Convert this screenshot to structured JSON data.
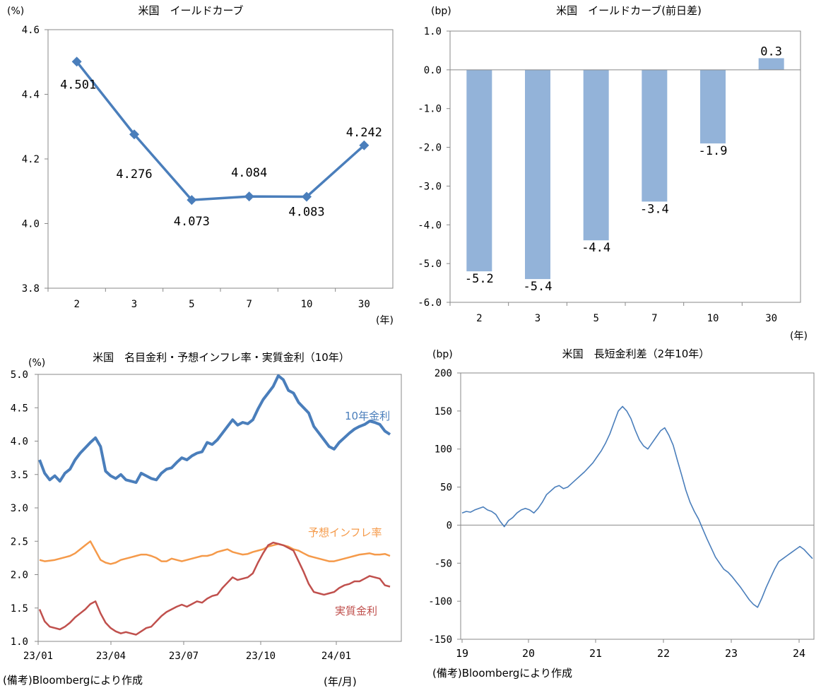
{
  "chart_data": [
    {
      "type": "line",
      "title": "米国　イールドカーブ",
      "ylabel": "(%)",
      "xlabel": "(年)",
      "categories": [
        "2",
        "3",
        "5",
        "7",
        "10",
        "30"
      ],
      "series": [
        {
          "values": [
            4.501,
            4.276,
            4.073,
            4.084,
            4.083,
            4.242
          ]
        }
      ],
      "data_labels": [
        "4.501",
        "4.276",
        "4.073",
        "4.084",
        "4.083",
        "4.242"
      ],
      "y_ticks": [
        "4.6",
        "4.4",
        "4.2",
        "4.0",
        "3.8"
      ],
      "ylim": [
        3.8,
        4.6
      ],
      "grid": false,
      "color": "#4a7ebb"
    },
    {
      "type": "bar",
      "title": "米国　イールドカーブ(前日差)",
      "ylabel": "(bp)",
      "xlabel": "(年)",
      "categories": [
        "2",
        "3",
        "5",
        "7",
        "10",
        "30"
      ],
      "values": [
        -5.2,
        -5.4,
        -4.4,
        -3.4,
        -1.9,
        0.3
      ],
      "data_labels": [
        "-5.2",
        "-5.4",
        "-4.4",
        "-3.4",
        "-1.9",
        "0.3"
      ],
      "y_ticks": [
        "1.0",
        "0.0",
        "-1.0",
        "-2.0",
        "-3.0",
        "-4.0",
        "-5.0",
        "-6.0"
      ],
      "ylim": [
        -6,
        1
      ],
      "grid": false,
      "color": "#93b3d9"
    },
    {
      "type": "line",
      "title": "米国　名目金利・予想インフレ率・実質金利（10年）",
      "ylabel": "(%)",
      "xlabel": "(年/月)",
      "x_ticks": [
        "23/01",
        "23/04",
        "23/07",
        "23/10",
        "24/01"
      ],
      "y_ticks": [
        "5.0",
        "4.5",
        "4.0",
        "3.5",
        "3.0",
        "2.5",
        "2.0",
        "1.5",
        "1.0"
      ],
      "ylim": [
        1.0,
        5.0
      ],
      "grid": false,
      "series": [
        {
          "name": "10年金利",
          "color": "#4a7ebb",
          "values": [
            3.72,
            3.52,
            3.42,
            3.48,
            3.4,
            3.52,
            3.58,
            3.72,
            3.82,
            3.9,
            3.98,
            4.05,
            3.92,
            3.55,
            3.48,
            3.44,
            3.5,
            3.42,
            3.4,
            3.38,
            3.52,
            3.48,
            3.44,
            3.42,
            3.52,
            3.58,
            3.6,
            3.68,
            3.75,
            3.72,
            3.78,
            3.82,
            3.84,
            3.98,
            3.95,
            4.02,
            4.12,
            4.22,
            4.32,
            4.24,
            4.28,
            4.26,
            4.32,
            4.48,
            4.62,
            4.72,
            4.82,
            4.98,
            4.92,
            4.76,
            4.72,
            4.58,
            4.5,
            4.42,
            4.22,
            4.12,
            4.02,
            3.92,
            3.88,
            3.98,
            4.05,
            4.12,
            4.18,
            4.22,
            4.25,
            4.3,
            4.28,
            4.25,
            4.15,
            4.1
          ]
        },
        {
          "name": "予想インフレ率",
          "color": "#f59a4a",
          "values": [
            2.22,
            2.2,
            2.21,
            2.22,
            2.24,
            2.26,
            2.28,
            2.32,
            2.38,
            2.44,
            2.5,
            2.36,
            2.22,
            2.18,
            2.16,
            2.18,
            2.22,
            2.24,
            2.26,
            2.28,
            2.3,
            2.3,
            2.28,
            2.25,
            2.2,
            2.2,
            2.24,
            2.22,
            2.2,
            2.22,
            2.24,
            2.26,
            2.28,
            2.28,
            2.3,
            2.34,
            2.36,
            2.38,
            2.34,
            2.32,
            2.3,
            2.31,
            2.34,
            2.36,
            2.38,
            2.42,
            2.44,
            2.46,
            2.44,
            2.42,
            2.38,
            2.36,
            2.32,
            2.28,
            2.26,
            2.24,
            2.22,
            2.2,
            2.2,
            2.22,
            2.24,
            2.26,
            2.28,
            2.3,
            2.31,
            2.32,
            2.3,
            2.3,
            2.31,
            2.28
          ]
        },
        {
          "name": "実質金利",
          "color": "#c0504d",
          "values": [
            1.48,
            1.3,
            1.22,
            1.2,
            1.18,
            1.22,
            1.28,
            1.36,
            1.42,
            1.48,
            1.56,
            1.6,
            1.42,
            1.28,
            1.2,
            1.15,
            1.12,
            1.14,
            1.12,
            1.1,
            1.15,
            1.2,
            1.22,
            1.3,
            1.38,
            1.44,
            1.48,
            1.52,
            1.55,
            1.52,
            1.56,
            1.6,
            1.58,
            1.64,
            1.68,
            1.7,
            1.8,
            1.88,
            1.96,
            1.92,
            1.94,
            1.96,
            2.02,
            2.18,
            2.32,
            2.44,
            2.48,
            2.46,
            2.44,
            2.4,
            2.36,
            2.2,
            2.04,
            1.86,
            1.74,
            1.72,
            1.7,
            1.72,
            1.74,
            1.8,
            1.84,
            1.86,
            1.9,
            1.9,
            1.94,
            1.98,
            1.96,
            1.94,
            1.84,
            1.82
          ]
        }
      ]
    },
    {
      "type": "line",
      "title": "米国　長短金利差（2年10年）",
      "ylabel": "(bp)",
      "x_ticks": [
        "19",
        "20",
        "21",
        "22",
        "23",
        "24"
      ],
      "y_ticks": [
        "200",
        "150",
        "100",
        "50",
        "0",
        "-50",
        "-100",
        "-150"
      ],
      "ylim": [
        -150,
        200
      ],
      "grid": false,
      "series": [
        {
          "color": "#4a7ebb",
          "values": [
            16,
            18,
            17,
            20,
            22,
            24,
            20,
            18,
            14,
            5,
            -2,
            6,
            10,
            16,
            20,
            22,
            20,
            16,
            22,
            30,
            40,
            45,
            50,
            52,
            48,
            50,
            55,
            60,
            65,
            70,
            76,
            82,
            90,
            98,
            108,
            120,
            135,
            150,
            156,
            150,
            140,
            125,
            112,
            104,
            100,
            108,
            116,
            124,
            128,
            118,
            105,
            85,
            66,
            46,
            30,
            18,
            8,
            -5,
            -18,
            -30,
            -42,
            -50,
            -58,
            -62,
            -68,
            -75,
            -82,
            -90,
            -98,
            -104,
            -108,
            -96,
            -82,
            -70,
            -58,
            -48,
            -44,
            -40,
            -36,
            -32,
            -28,
            -32,
            -38,
            -44
          ]
        }
      ]
    }
  ],
  "notes": {
    "bottom_left": "(備考)Bloombergにより作成",
    "bottom_right": "(備考)Bloombergにより作成",
    "bottom_left_unit": "(年/月)"
  }
}
